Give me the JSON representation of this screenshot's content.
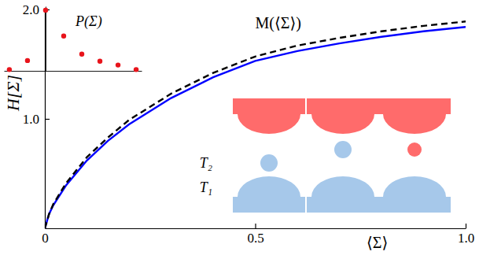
{
  "chart_data": [
    {
      "type": "line",
      "xlabel": "⟨Σ⟩",
      "ylabel": "H[Σ]",
      "x": [
        0,
        0.01,
        0.02,
        0.05,
        0.1,
        0.15,
        0.2,
        0.3,
        0.4,
        0.5,
        0.6,
        0.7,
        0.8,
        0.9,
        1.0
      ],
      "series": [
        {
          "color": "#0000ff",
          "line_style": "solid",
          "values": [
            0,
            0.13,
            0.21,
            0.39,
            0.62,
            0.8,
            0.95,
            1.19,
            1.38,
            1.53,
            1.62,
            1.69,
            1.75,
            1.8,
            1.84
          ]
        },
        {
          "name": "M(⟨Σ⟩)",
          "color": "#000000",
          "line_style": "dashed",
          "values": [
            0,
            0.13,
            0.22,
            0.41,
            0.65,
            0.83,
            0.99,
            1.23,
            1.42,
            1.57,
            1.67,
            1.74,
            1.8,
            1.85,
            1.89
          ]
        }
      ],
      "xlim": [
        0,
        1
      ],
      "ylim": [
        0,
        2
      ],
      "xticks": [
        0,
        0.5,
        {
          "value": 1,
          "label": "1.0"
        }
      ],
      "yticks": [
        {
          "value": 1,
          "label": "1.0"
        },
        {
          "value": 2,
          "label": "2.0"
        }
      ],
      "annotations": [
        "T₂",
        "T₁"
      ]
    },
    {
      "type": "scatter",
      "title": "P(Σ)",
      "x": [
        -2,
        -1,
        0,
        1,
        2,
        3,
        4,
        5
      ],
      "values": [
        0.01,
        0.08,
        0.47,
        0.27,
        0.13,
        0.075,
        0.045,
        0.01
      ],
      "color": "#e8141b",
      "marker": "circle",
      "xlim": [
        -2.3,
        5.3
      ],
      "ylim": [
        0,
        0.5
      ],
      "tick_labels": false
    }
  ]
}
